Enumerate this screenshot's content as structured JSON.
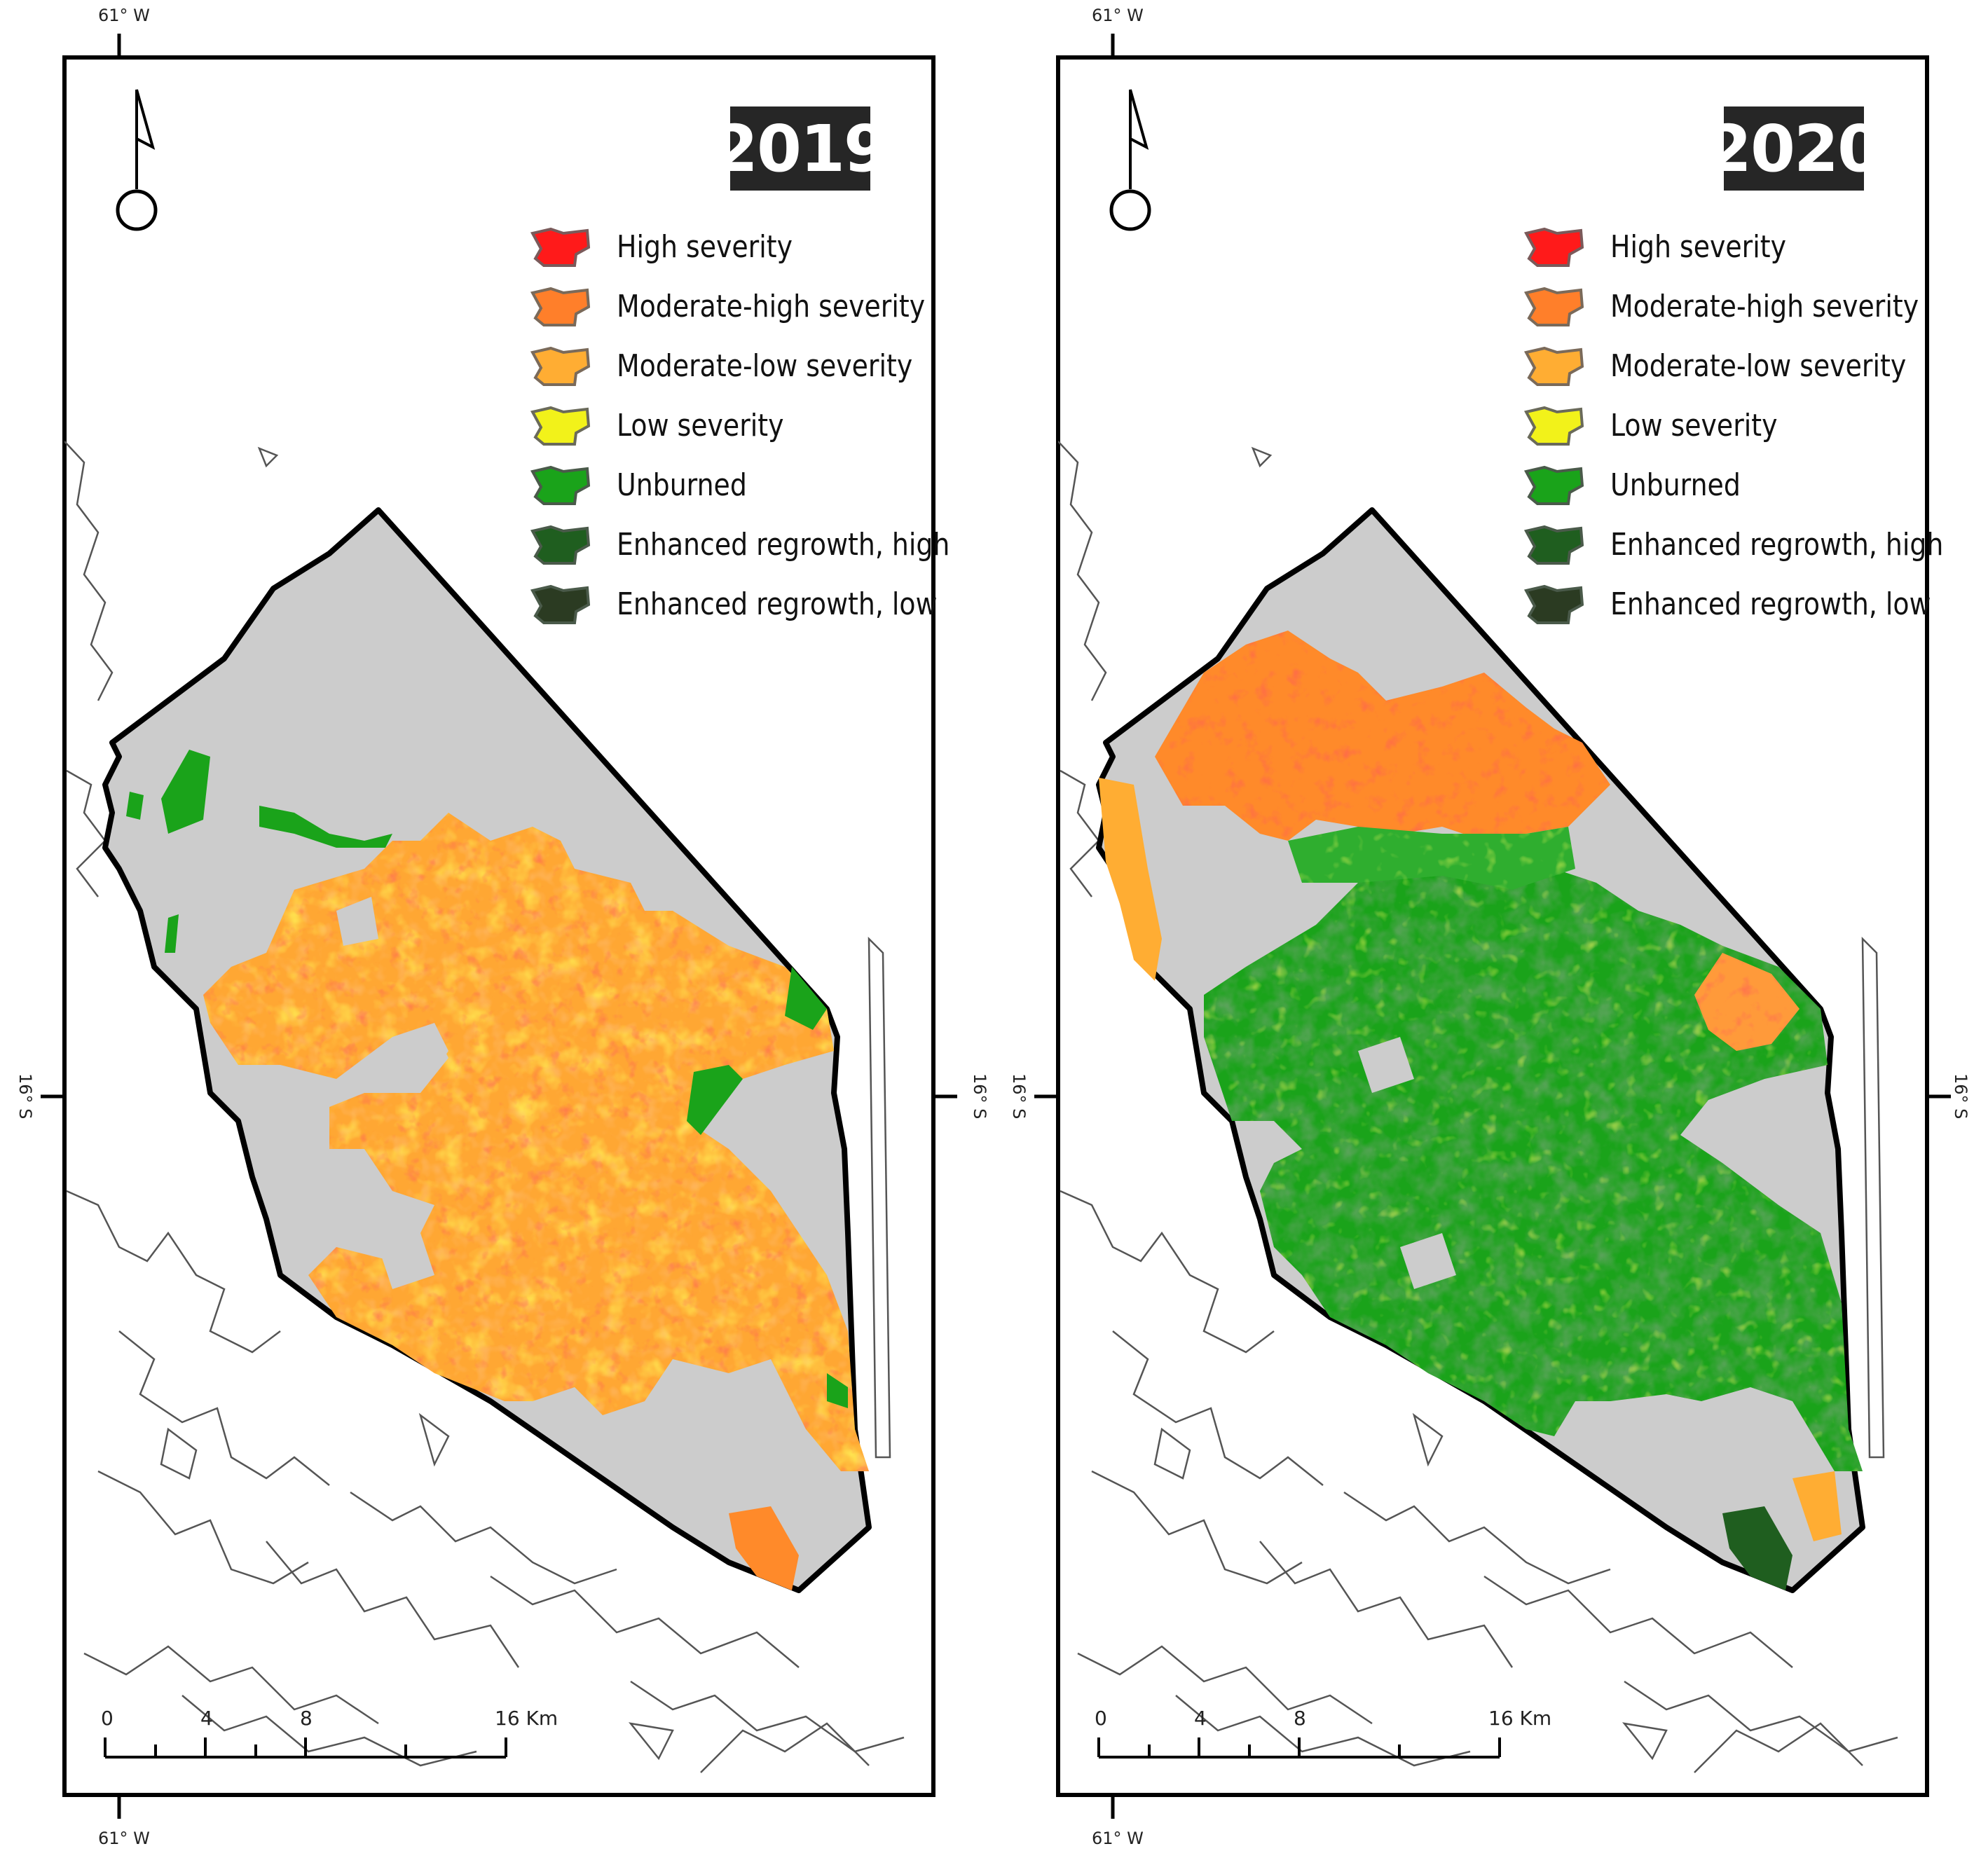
{
  "panels": [
    {
      "year": "2019",
      "lon_label": "61° W",
      "lat_label": "16° S",
      "scale_labels": [
        "0",
        "4",
        "8",
        "16 Km"
      ]
    },
    {
      "year": "2020",
      "lon_label": "61° W",
      "lat_label": "16° S",
      "scale_labels": [
        "0",
        "4",
        "8",
        "16 Km"
      ]
    }
  ],
  "legend": [
    {
      "label": "High severity",
      "color": "#ff1a1a"
    },
    {
      "label": "Moderate-high severity",
      "color": "#ff7f2a"
    },
    {
      "label": "Moderate-low severity",
      "color": "#ffad33"
    },
    {
      "label": "Low severity",
      "color": "#f2f21a"
    },
    {
      "label": "Unburned",
      "color": "#1aa31a"
    },
    {
      "label": "Enhanced regrowth, high",
      "color": "#1f5e1f"
    },
    {
      "label": "Enhanced regrowth, low",
      "color": "#2b3b22"
    }
  ],
  "colors": {
    "park_fill": "#cccccc",
    "outside_fill": "#ffffff",
    "boundary": "#000000",
    "context_lines": "#555555",
    "badge": "#262626"
  },
  "icons": [
    "north-arrow-icon"
  ]
}
